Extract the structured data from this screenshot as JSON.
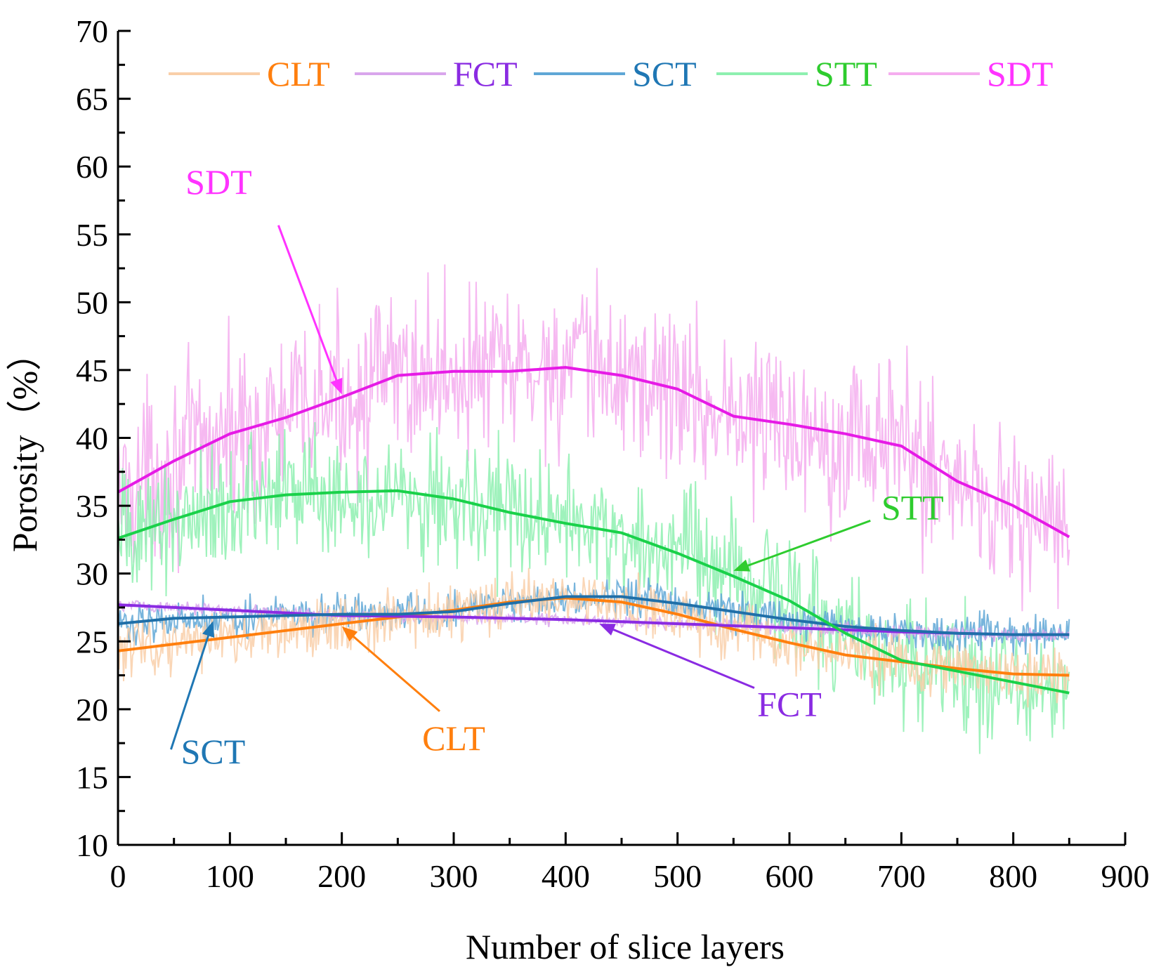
{
  "chart_data": {
    "type": "line",
    "title": "",
    "xlabel": "Number of slice layers",
    "ylabel": "Porosity（%）",
    "xlim": [
      0,
      900
    ],
    "ylim": [
      10,
      70
    ],
    "xticks": [
      0,
      100,
      200,
      300,
      400,
      500,
      600,
      700,
      800,
      900
    ],
    "yticks": [
      10,
      15,
      20,
      25,
      30,
      35,
      40,
      45,
      50,
      55,
      60,
      65,
      70
    ],
    "grid": false,
    "legend_position": "top",
    "series": [
      {
        "name": "CLT",
        "raw_color": "#f9cfa9",
        "fit_color": "#ff7f0e",
        "label_color": "#ff7f0e",
        "noise": 1.8,
        "fit_x": [
          0,
          50,
          100,
          150,
          200,
          250,
          300,
          350,
          400,
          450,
          500,
          550,
          600,
          650,
          700,
          750,
          800,
          850
        ],
        "fit_y": [
          24.3,
          24.8,
          25.3,
          25.8,
          26.3,
          26.8,
          27.3,
          27.9,
          28.2,
          27.9,
          27.0,
          25.9,
          24.9,
          24.0,
          23.5,
          23.0,
          22.6,
          22.5
        ]
      },
      {
        "name": "FCT",
        "raw_color": "#d9a6ec",
        "fit_color": "#8a2be2",
        "label_color": "#8a2be2",
        "noise": 0.4,
        "fit_x": [
          0,
          100,
          200,
          300,
          400,
          500,
          600,
          700,
          800,
          850
        ],
        "fit_y": [
          27.7,
          27.3,
          26.9,
          26.8,
          26.6,
          26.3,
          26.0,
          25.7,
          25.5,
          25.5
        ]
      },
      {
        "name": "SCT",
        "raw_color": "#5fa7d6",
        "fit_color": "#1f6fa8",
        "label_color": "#1f77b4",
        "noise": 1.2,
        "fit_x": [
          0,
          50,
          100,
          150,
          200,
          250,
          300,
          350,
          400,
          450,
          500,
          550,
          600,
          650,
          700,
          750,
          800,
          850
        ],
        "fit_y": [
          26.3,
          26.7,
          26.8,
          26.9,
          27.0,
          27.0,
          27.2,
          27.8,
          28.3,
          28.3,
          27.8,
          27.2,
          26.6,
          26.1,
          25.8,
          25.6,
          25.5,
          25.5
        ]
      },
      {
        "name": "STT",
        "raw_color": "#8ef0b0",
        "fit_color": "#1ad14a",
        "label_color": "#2ecc2e",
        "noise": 4.0,
        "fit_x": [
          0,
          50,
          100,
          150,
          200,
          250,
          300,
          350,
          400,
          450,
          500,
          550,
          600,
          650,
          700,
          750,
          800,
          850
        ],
        "fit_y": [
          32.6,
          34.0,
          35.3,
          35.8,
          36.0,
          36.1,
          35.5,
          34.5,
          33.7,
          33.0,
          31.5,
          29.8,
          28.0,
          25.6,
          23.6,
          22.8,
          22.0,
          21.2
        ]
      },
      {
        "name": "SDT",
        "raw_color": "#f5adef",
        "fit_color": "#e61be6",
        "label_color": "#ff33ff",
        "noise": 5.5,
        "fit_x": [
          0,
          50,
          100,
          150,
          200,
          250,
          300,
          350,
          400,
          450,
          500,
          550,
          600,
          650,
          700,
          750,
          800,
          850
        ],
        "fit_y": [
          36.0,
          38.3,
          40.3,
          41.5,
          43.0,
          44.6,
          44.9,
          44.9,
          45.2,
          44.6,
          43.6,
          41.6,
          41.0,
          40.3,
          39.4,
          36.8,
          35.0,
          32.7
        ]
      }
    ],
    "annotations": [
      {
        "text": "SDT",
        "target_x": 200,
        "target_y": 43.2,
        "label_x": 90,
        "label_y": 58.0,
        "color": "#ff33ff"
      },
      {
        "text": "STT",
        "target_x": 550,
        "target_y": 30.2,
        "label_x": 710,
        "label_y": 34.0,
        "color": "#2ecc2e"
      },
      {
        "text": "SCT",
        "target_x": 85,
        "target_y": 26.5,
        "label_x": 85,
        "label_y": 16.0,
        "color": "#1f77b4"
      },
      {
        "text": "CLT",
        "target_x": 200,
        "target_y": 26.1,
        "label_x": 300,
        "label_y": 17.0,
        "color": "#ff7f0e"
      },
      {
        "text": "FCT",
        "target_x": 430,
        "target_y": 26.3,
        "label_x": 600,
        "label_y": 19.5,
        "color": "#8a2be2"
      }
    ]
  }
}
